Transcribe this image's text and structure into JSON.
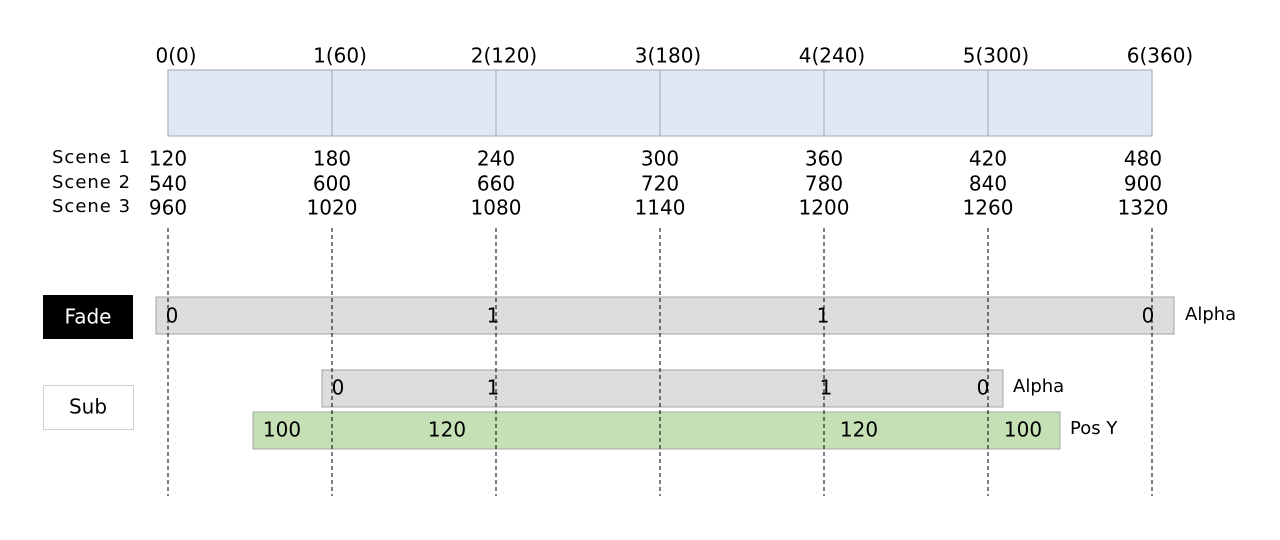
{
  "timeline": {
    "labels": [
      "0(0)",
      "1(60)",
      "2(120)",
      "3(180)",
      "4(240)",
      "5(300)",
      "6(360)"
    ]
  },
  "scenes": [
    {
      "name": "Scene 1",
      "values": [
        120,
        180,
        240,
        300,
        360,
        420,
        480
      ]
    },
    {
      "name": "Scene 2",
      "values": [
        540,
        600,
        660,
        720,
        780,
        840,
        900
      ]
    },
    {
      "name": "Scene 3",
      "values": [
        960,
        1020,
        1080,
        1140,
        1200,
        1260,
        1320
      ]
    }
  ],
  "tracks": [
    {
      "label": "Fade",
      "rows": [
        {
          "property": "Alpha",
          "keys": [
            0,
            1,
            1,
            0
          ]
        }
      ]
    },
    {
      "label": "Sub",
      "rows": [
        {
          "property": "Alpha",
          "keys": [
            0,
            1,
            1,
            0
          ]
        },
        {
          "property": "Pos Y",
          "keys": [
            100,
            120,
            120,
            100
          ]
        }
      ]
    }
  ]
}
